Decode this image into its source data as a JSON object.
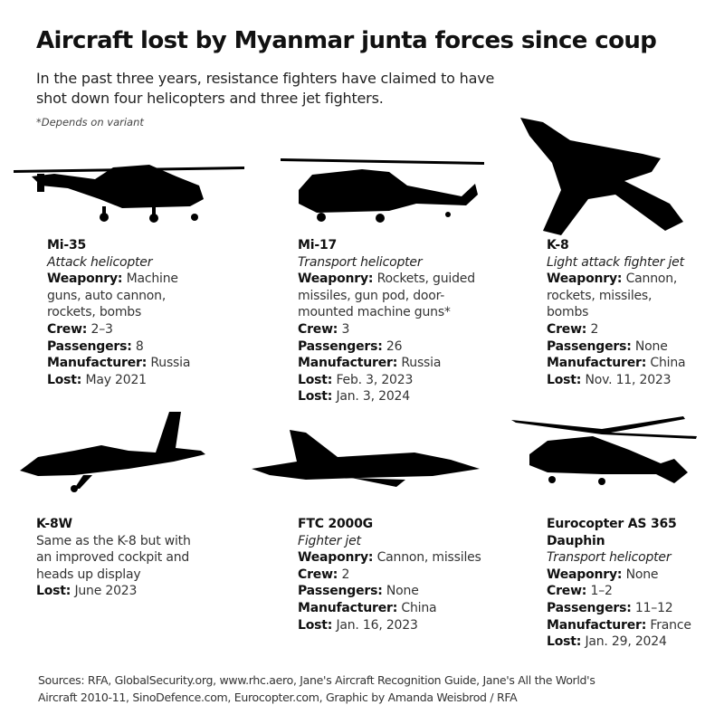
{
  "title": "Aircraft lost by Myanmar junta forces since coup",
  "subtitle": "In the past three years, resistance fighters have claimed to have shot down four helicopters and three jet fighters.",
  "note": "*Depends on variant",
  "aircraft": [
    {
      "name": "Mi-35",
      "type": "Attack helicopter",
      "silhouette": "attack-helicopter-icon",
      "fields": [
        {
          "label": "Weaponry:",
          "value": "Machine guns, auto cannon, rockets, bombs"
        },
        {
          "label": "Crew:",
          "value": "2–3"
        },
        {
          "label": "Passengers:",
          "value": "8"
        },
        {
          "label": "Manufacturer:",
          "value": "Russia"
        },
        {
          "label": "Lost:",
          "value": "May 2021"
        }
      ]
    },
    {
      "name": "Mi-17",
      "type": "Transport helicopter",
      "silhouette": "transport-helicopter-icon",
      "fields": [
        {
          "label": "Weaponry:",
          "value": "Rockets, guided missiles, gun pod, door-mounted machine guns*"
        },
        {
          "label": "Crew:",
          "value": "3"
        },
        {
          "label": "Passengers:",
          "value": "26"
        },
        {
          "label": "Manufacturer:",
          "value": "Russia"
        },
        {
          "label": "Lost:",
          "value": "Feb. 3, 2023"
        },
        {
          "label": "Lost:",
          "value": "Jan. 3, 2024"
        }
      ]
    },
    {
      "name": "K-8",
      "type": "Light attack fighter jet",
      "silhouette": "jet-top-view-icon",
      "fields": [
        {
          "label": "Weaponry:",
          "value": "Cannon, rockets, missiles, bombs"
        },
        {
          "label": "Crew:",
          "value": "2"
        },
        {
          "label": "Passengers:",
          "value": "None"
        },
        {
          "label": "Manufacturer:",
          "value": "China"
        },
        {
          "label": "Lost:",
          "value": "Nov. 11, 2023"
        }
      ]
    },
    {
      "name": "K-8W",
      "description": "Same as the K-8 but with an improved cockpit and heads up display",
      "silhouette": "jet-side-view-icon",
      "fields": [
        {
          "label": "Lost:",
          "value": "June 2023"
        }
      ]
    },
    {
      "name": "FTC 2000G",
      "type": "Fighter jet",
      "silhouette": "fighter-jet-icon",
      "fields": [
        {
          "label": "Weaponry:",
          "value": "Cannon, missiles"
        },
        {
          "label": "Crew:",
          "value": "2"
        },
        {
          "label": "Passengers:",
          "value": "None"
        },
        {
          "label": "Manufacturer:",
          "value": "China"
        },
        {
          "label": "Lost:",
          "value": "Jan. 16, 2023"
        }
      ]
    },
    {
      "name": "Eurocopter AS 365 Dauphin",
      "type": "Transport helicopter",
      "silhouette": "dauphin-helicopter-icon",
      "fields": [
        {
          "label": "Weaponry:",
          "value": "None"
        },
        {
          "label": "Crew:",
          "value": "1–2"
        },
        {
          "label": "Passengers:",
          "value": "11–12"
        },
        {
          "label": "Manufacturer:",
          "value": "France"
        },
        {
          "label": "Lost:",
          "value": "Jan. 29, 2024"
        }
      ]
    }
  ],
  "sources": "Sources: RFA, GlobalSecurity.org, www.rhc.aero, Jane's Aircraft Recognition Guide, Jane's All the World's Aircraft 2010-11, SinoDefence.com, Eurocopter.com, Graphic by Amanda Weisbrod / RFA"
}
